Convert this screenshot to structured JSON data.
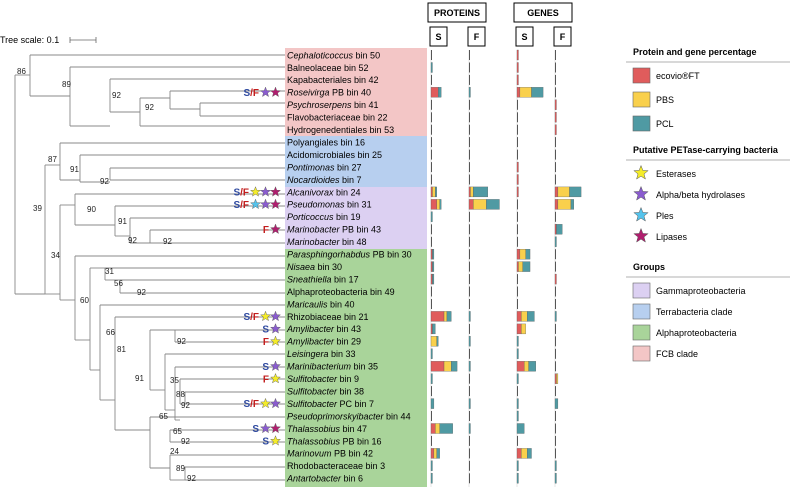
{
  "tree_scale": "Tree scale: 0.1",
  "headers": {
    "proteins": "PROTEINS",
    "genes": "GENES",
    "s": "S",
    "f": "F"
  },
  "legend": {
    "protein_gene": {
      "title": "Protein and gene percentage",
      "items": [
        {
          "label": "ecovio®FT",
          "color": "#e05c5c"
        },
        {
          "label": "PBS",
          "color": "#f9d04c"
        },
        {
          "label": "PCL",
          "color": "#4f9aa3"
        }
      ]
    },
    "petase": {
      "title": "Putative PETase-carrying bacteria",
      "items": [
        {
          "label": "Esterases",
          "color": "#f4ec2a"
        },
        {
          "label": "Alpha/beta hydrolases",
          "color": "#8a5ccf"
        },
        {
          "label": "Ples",
          "color": "#55c3ec"
        },
        {
          "label": "Lipases",
          "color": "#b01e6e"
        }
      ]
    },
    "groups": {
      "title": "Groups",
      "items": [
        {
          "label": "Gammaproteobacteria",
          "color": "#dcd0f2"
        },
        {
          "label": "Terrabacteria clade",
          "color": "#b7cfef"
        },
        {
          "label": "Alphaproteobacteria",
          "color": "#a9d49a"
        },
        {
          "label": "FCB clade",
          "color": "#f3c6c6"
        }
      ]
    }
  },
  "taxa": [
    {
      "pre": "Cephaloticoccus",
      "post": " bin 50",
      "g": "fcb",
      "ps": [
        0,
        0,
        0
      ],
      "pf": [
        0,
        0,
        0
      ],
      "gs": [
        1,
        0,
        0
      ],
      "gf": [
        0,
        0,
        0
      ]
    },
    {
      "pre": "",
      "post": "Balneolaceae bin 52",
      "g": "fcb",
      "ps": [
        0,
        0,
        1
      ],
      "pf": [
        0,
        0,
        0
      ],
      "gs": [
        1,
        0,
        0
      ],
      "gf": [
        0,
        0,
        0
      ]
    },
    {
      "pre": "",
      "post": "Kapabacteriales bin 42",
      "g": "fcb",
      "ps": [
        0,
        0,
        0
      ],
      "pf": [
        0,
        0,
        0
      ],
      "gs": [
        1,
        0,
        0
      ],
      "gf": [
        0,
        0,
        0
      ]
    },
    {
      "pre": "Roseivirga",
      "post": " PB bin 40",
      "g": "fcb",
      "ps": [
        5,
        0,
        2
      ],
      "pf": [
        0,
        0,
        1
      ],
      "gs": [
        2,
        8,
        8
      ],
      "gf": [
        0,
        0,
        0
      ],
      "tag": "S/F",
      "tagc": "mix",
      "stars": [
        "alpha",
        "lipase"
      ]
    },
    {
      "pre": "Psychroserpens",
      "post": " bin 41",
      "g": "fcb",
      "ps": [
        0,
        0,
        0
      ],
      "pf": [
        0,
        0,
        0
      ],
      "gs": [
        0,
        0,
        0
      ],
      "gf": [
        1,
        0,
        0
      ]
    },
    {
      "pre": "",
      "post": "Flavobacteriaceae bin 22",
      "g": "fcb",
      "ps": [
        0,
        0,
        0
      ],
      "pf": [
        0,
        0,
        0
      ],
      "gs": [
        0,
        0,
        0
      ],
      "gf": [
        1,
        0,
        0
      ]
    },
    {
      "pre": "",
      "post": "Hydrogenedentiales bin 53",
      "g": "fcb",
      "ps": [
        0,
        0,
        0
      ],
      "pf": [
        0,
        0,
        0
      ],
      "gs": [
        0,
        0,
        0
      ],
      "gf": [
        1,
        0,
        0
      ]
    },
    {
      "pre": "",
      "post": "Polyangiales bin 16",
      "g": "terra",
      "ps": [
        0,
        0,
        0
      ],
      "pf": [
        0,
        0,
        0
      ],
      "gs": [
        0,
        0,
        0
      ],
      "gf": [
        0,
        0,
        0
      ]
    },
    {
      "pre": "",
      "post": "Acidomicrobiales bin 25",
      "g": "terra",
      "ps": [
        0,
        0,
        0
      ],
      "pf": [
        0,
        0,
        0
      ],
      "gs": [
        0,
        0,
        0
      ],
      "gf": [
        0,
        0,
        0
      ]
    },
    {
      "pre": "Pontimonas",
      "post": " bin 27",
      "g": "terra",
      "ps": [
        0,
        0,
        0
      ],
      "pf": [
        0,
        0,
        0
      ],
      "gs": [
        1,
        0,
        0
      ],
      "gf": [
        0,
        0,
        0
      ]
    },
    {
      "pre": "Nocardioides",
      "post": " bin 7",
      "g": "terra",
      "ps": [
        0,
        0,
        0
      ],
      "pf": [
        0,
        0,
        0
      ],
      "gs": [
        1,
        0,
        0
      ],
      "gf": [
        0,
        0,
        0
      ]
    },
    {
      "pre": "Alcanivorax",
      "post": " bin 24",
      "g": "gamma",
      "ps": [
        1,
        2,
        1
      ],
      "pf": [
        1,
        2,
        10
      ],
      "gs": [
        1,
        0,
        0
      ],
      "gf": [
        2,
        8,
        8
      ],
      "tag": "S/F",
      "tagc": "mix",
      "stars": [
        "ester",
        "alpha",
        "lipase"
      ]
    },
    {
      "pre": "Pseudomonas",
      "post": " bin 31",
      "g": "gamma",
      "ps": [
        4,
        2,
        1
      ],
      "pf": [
        3,
        9,
        9
      ],
      "gs": [
        0,
        0,
        0
      ],
      "gf": [
        2,
        9,
        2
      ],
      "tag": "S/F",
      "tagc": "mix",
      "stars": [
        "ples",
        "alpha",
        "lipase"
      ]
    },
    {
      "pre": "Porticoccus",
      "post": " bin 19",
      "g": "gamma",
      "ps": [
        0,
        0,
        1
      ],
      "pf": [
        0,
        0,
        0
      ],
      "gs": [
        0,
        0,
        0
      ],
      "gf": [
        0,
        0,
        0
      ]
    },
    {
      "pre": "Marinobacter",
      "post": " PB bin 43",
      "g": "gamma",
      "ps": [
        0,
        0,
        0
      ],
      "pf": [
        0,
        0,
        0
      ],
      "gs": [
        0,
        0,
        0
      ],
      "gf": [
        1,
        0,
        4
      ],
      "tag": "F",
      "tagc": "f",
      "stars": [
        "lipase"
      ]
    },
    {
      "pre": "Marinobacter",
      "post": " bin 48",
      "g": "gamma",
      "ps": [
        0,
        0,
        0
      ],
      "pf": [
        0,
        0,
        0
      ],
      "gs": [
        0,
        0,
        0
      ],
      "gf": [
        0,
        0,
        1
      ]
    },
    {
      "pre": "Parasphingorhabdus",
      "post": " PB bin 30",
      "g": "alpha",
      "ps": [
        1,
        0,
        1
      ],
      "pf": [
        0,
        0,
        0
      ],
      "gs": [
        2,
        4,
        3
      ],
      "gf": [
        0,
        0,
        0
      ]
    },
    {
      "pre": "Nisaea",
      "post": " bin 30",
      "g": "alpha",
      "ps": [
        1,
        0,
        1
      ],
      "pf": [
        0,
        0,
        0
      ],
      "gs": [
        1,
        3,
        5
      ],
      "gf": [
        0,
        0,
        0
      ]
    },
    {
      "pre": "Sneathiella",
      "post": " bin 17",
      "g": "alpha",
      "ps": [
        1,
        0,
        1
      ],
      "pf": [
        0,
        0,
        0
      ],
      "gs": [
        0,
        0,
        0
      ],
      "gf": [
        1,
        0,
        0
      ]
    },
    {
      "pre": "",
      "post": "Alphaproteobacteria bin 49",
      "g": "alpha",
      "ps": [
        0,
        0,
        0
      ],
      "pf": [
        0,
        0,
        0
      ],
      "gs": [
        0,
        0,
        0
      ],
      "gf": [
        0,
        0,
        0
      ]
    },
    {
      "pre": "Maricaulis",
      "post": " bin 40",
      "g": "alpha",
      "ps": [
        0,
        0,
        0
      ],
      "pf": [
        0,
        0,
        0
      ],
      "gs": [
        0,
        0,
        0
      ],
      "gf": [
        0,
        0,
        0
      ]
    },
    {
      "pre": "",
      "post": "Rhizobiaceae bin 21",
      "g": "alpha",
      "ps": [
        9,
        2,
        3
      ],
      "pf": [
        0,
        0,
        1
      ],
      "gs": [
        3,
        4,
        5
      ],
      "gf": [
        0,
        0,
        1
      ],
      "tag": "S/F",
      "tagc": "mix",
      "stars": [
        "ester",
        "alpha"
      ]
    },
    {
      "pre": "Amylibacter",
      "post": " bin 43",
      "g": "alpha",
      "ps": [
        1,
        0,
        2
      ],
      "pf": [
        0,
        0,
        0
      ],
      "gs": [
        3,
        3,
        0
      ],
      "gf": [
        0,
        0,
        0
      ],
      "tag": "S",
      "tagc": "s",
      "stars": [
        "alpha"
      ]
    },
    {
      "pre": "Amylibacter",
      "post": " bin 29",
      "g": "alpha",
      "ps": [
        0,
        4,
        1
      ],
      "pf": [
        0,
        0,
        1
      ],
      "gs": [
        0,
        0,
        1
      ],
      "gf": [
        0,
        0,
        0
      ],
      "tag": "F",
      "tagc": "f",
      "stars": [
        "ester"
      ]
    },
    {
      "pre": "Leisingera",
      "post": " bin 33",
      "g": "alpha",
      "ps": [
        0,
        0,
        1
      ],
      "pf": [
        0,
        0,
        0
      ],
      "gs": [
        0,
        0,
        1
      ],
      "gf": [
        0,
        0,
        0
      ]
    },
    {
      "pre": "Marinibacterium",
      "post": " bin 35",
      "g": "alpha",
      "ps": [
        9,
        5,
        4
      ],
      "pf": [
        0,
        0,
        1
      ],
      "gs": [
        5,
        3,
        5
      ],
      "gf": [
        0,
        0,
        0
      ],
      "tag": "S",
      "tagc": "s",
      "stars": [
        "alpha"
      ]
    },
    {
      "pre": "Sulfitobacter",
      "post": " bin 9",
      "g": "alpha",
      "ps": [
        0,
        0,
        1
      ],
      "pf": [
        0,
        0,
        0
      ],
      "gs": [
        0,
        0,
        1
      ],
      "gf": [
        1,
        1,
        0
      ],
      "tag": "F",
      "tagc": "f",
      "stars": [
        "ester"
      ]
    },
    {
      "pre": "Sulfitobacter",
      "post": " bin 38",
      "g": "alpha",
      "ps": [
        0,
        0,
        0
      ],
      "pf": [
        0,
        0,
        0
      ],
      "gs": [
        0,
        0,
        0
      ],
      "gf": [
        0,
        0,
        0
      ]
    },
    {
      "pre": "Sulfitobacter",
      "post": " PC bin 7",
      "g": "alpha",
      "ps": [
        0,
        0,
        2
      ],
      "pf": [
        0,
        0,
        1
      ],
      "gs": [
        0,
        0,
        1
      ],
      "gf": [
        0,
        0,
        2
      ],
      "tag": "S/F",
      "tagc": "mix",
      "stars": [
        "ester",
        "alpha"
      ]
    },
    {
      "pre": "Pseudoprimorskyibacter",
      "post": " bin 44",
      "g": "alpha",
      "ps": [
        0,
        0,
        0
      ],
      "pf": [
        0,
        0,
        0
      ],
      "gs": [
        0,
        0,
        1
      ],
      "gf": [
        0,
        0,
        0
      ]
    },
    {
      "pre": "Thalassobius",
      "post": " bin 47",
      "g": "alpha",
      "ps": [
        3,
        3,
        9
      ],
      "pf": [
        0,
        0,
        1
      ],
      "gs": [
        0,
        0,
        5
      ],
      "gf": [
        0,
        0,
        0
      ],
      "tag": "S",
      "tagc": "s",
      "stars": [
        "alpha",
        "lipase"
      ]
    },
    {
      "pre": "Thalassobius",
      "post": " PB bin 16",
      "g": "alpha",
      "ps": [
        0,
        0,
        0
      ],
      "pf": [
        0,
        0,
        0
      ],
      "gs": [
        0,
        0,
        0
      ],
      "gf": [
        0,
        0,
        0
      ],
      "tag": "S",
      "tagc": "s",
      "stars": [
        "ester"
      ]
    },
    {
      "pre": "Marinovum",
      "post": " PB bin 42",
      "g": "alpha",
      "ps": [
        2,
        2,
        2
      ],
      "pf": [
        0,
        0,
        0
      ],
      "gs": [
        3,
        4,
        3
      ],
      "gf": [
        0,
        0,
        0
      ]
    },
    {
      "pre": "",
      "post": "Rhodobacteraceae bin 3",
      "g": "alpha",
      "ps": [
        0,
        0,
        1
      ],
      "pf": [
        0,
        0,
        0
      ],
      "gs": [
        0,
        0,
        1
      ],
      "gf": [
        0,
        0,
        1
      ]
    },
    {
      "pre": "Antartobacter",
      "post": " bin 6",
      "g": "alpha",
      "ps": [
        0,
        0,
        1
      ],
      "pf": [
        0,
        0,
        0
      ],
      "gs": [
        0,
        0,
        1
      ],
      "gf": [
        0,
        0,
        1
      ]
    }
  ],
  "bootstrap": [
    "86",
    "89",
    "92",
    "92",
    "87",
    "91",
    "92",
    "39",
    "90",
    "91",
    "92",
    "92",
    "34",
    "31",
    "56",
    "92",
    "60",
    "66",
    "81",
    "92",
    "91",
    "35",
    "88",
    "92",
    "65",
    "65",
    "92",
    "24",
    "89",
    "92"
  ]
}
